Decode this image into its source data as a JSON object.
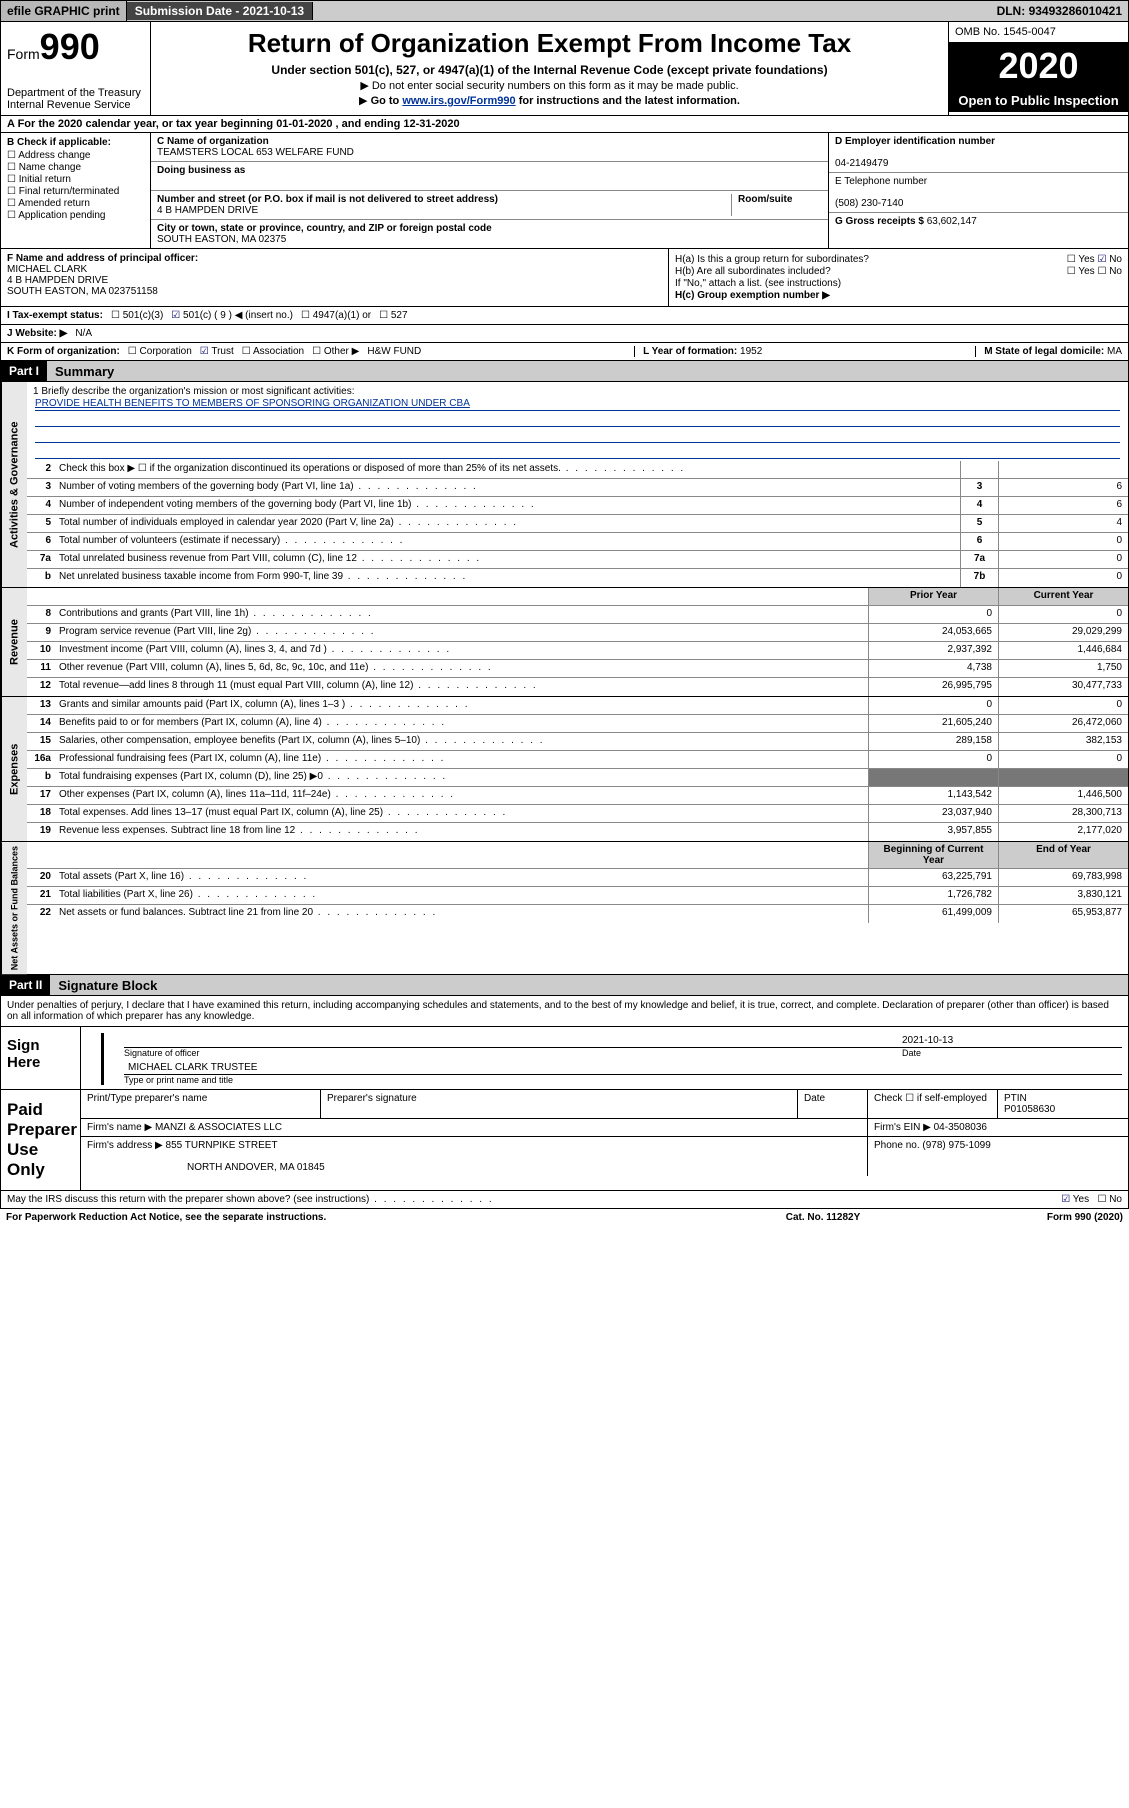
{
  "topbar": {
    "efile": "efile GRAPHIC print",
    "submission_label": "Submission Date - ",
    "submission_date": "2021-10-13",
    "dln_label": "DLN: ",
    "dln": "93493286010421"
  },
  "header": {
    "form_prefix": "Form",
    "form_no": "990",
    "dept": "Department of the Treasury\nInternal Revenue Service",
    "title": "Return of Organization Exempt From Income Tax",
    "sub1": "Under section 501(c), 527, or 4947(a)(1) of the Internal Revenue Code (except private foundations)",
    "sub2": "Do not enter social security numbers on this form as it may be made public.",
    "sub3_pre": "Go to ",
    "sub3_link": "www.irs.gov/Form990",
    "sub3_post": " for instructions and the latest information.",
    "omb": "OMB No. 1545-0047",
    "year": "2020",
    "inspect": "Open to Public Inspection"
  },
  "row_a": "A For the 2020 calendar year, or tax year beginning 01-01-2020    , and ending 12-31-2020",
  "col_b": {
    "hdr": "B Check if applicable:",
    "items": [
      "Address change",
      "Name change",
      "Initial return",
      "Final return/terminated",
      "Amended return",
      "Application pending"
    ]
  },
  "col_c": {
    "name_lbl": "C Name of organization",
    "name": "TEAMSTERS LOCAL 653 WELFARE FUND",
    "dba_lbl": "Doing business as",
    "dba": "",
    "addr_lbl": "Number and street (or P.O. box if mail is not delivered to street address)",
    "room_lbl": "Room/suite",
    "addr": "4 B HAMPDEN DRIVE",
    "city_lbl": "City or town, state or province, country, and ZIP or foreign postal code",
    "city": "SOUTH EASTON, MA  02375"
  },
  "col_d": {
    "ein_lbl": "D Employer identification number",
    "ein": "04-2149479",
    "tel_lbl": "E Telephone number",
    "tel": "(508) 230-7140",
    "gross_lbl": "G Gross receipts $ ",
    "gross": "63,602,147"
  },
  "section_f": {
    "f_lbl": "F Name and address of principal officer:",
    "f_name": "MICHAEL CLARK",
    "f_addr1": "4 B HAMPDEN DRIVE",
    "f_addr2": "SOUTH EASTON, MA  023751158",
    "ha_lbl": "H(a)  Is this a group return for subordinates?",
    "ha_yes": "Yes",
    "ha_no": "No",
    "hb_lbl": "H(b)  Are all subordinates included?",
    "hb_yes": "Yes",
    "hb_no": "No",
    "hb_note": "If \"No,\" attach a list. (see instructions)",
    "hc_lbl": "H(c)  Group exemption number ▶"
  },
  "status": {
    "i_lbl": "I  Tax-exempt status:",
    "opts": [
      "501(c)(3)",
      "501(c) ( 9 ) ◀ (insert no.)",
      "4947(a)(1) or",
      "527"
    ],
    "checked_idx": 1
  },
  "website": {
    "j_lbl": "J  Website: ▶",
    "val": "N/A"
  },
  "kform": {
    "k_lbl": "K Form of organization:",
    "opts": [
      "Corporation",
      "Trust",
      "Association",
      "Other ▶"
    ],
    "checked_idx": 1,
    "other_val": "H&W FUND",
    "l_lbl": "L Year of formation: ",
    "l_val": "1952",
    "m_lbl": "M State of legal domicile: ",
    "m_val": "MA"
  },
  "part1": {
    "label": "Part I",
    "title": "Summary"
  },
  "mission": {
    "prompt": "1  Briefly describe the organization's mission or most significant activities:",
    "text": "PROVIDE HEALTH BENEFITS TO MEMBERS OF SPONSORING ORGANIZATION UNDER CBA"
  },
  "governance": {
    "side": "Activities & Governance",
    "lines": [
      {
        "n": "2",
        "d": "Check this box ▶ ☐  if the organization discontinued its operations or disposed of more than 25% of its net assets.",
        "box": "",
        "v": ""
      },
      {
        "n": "3",
        "d": "Number of voting members of the governing body (Part VI, line 1a)",
        "box": "3",
        "v": "6"
      },
      {
        "n": "4",
        "d": "Number of independent voting members of the governing body (Part VI, line 1b)",
        "box": "4",
        "v": "6"
      },
      {
        "n": "5",
        "d": "Total number of individuals employed in calendar year 2020 (Part V, line 2a)",
        "box": "5",
        "v": "4"
      },
      {
        "n": "6",
        "d": "Total number of volunteers (estimate if necessary)",
        "box": "6",
        "v": "0"
      },
      {
        "n": "7a",
        "d": "Total unrelated business revenue from Part VIII, column (C), line 12",
        "box": "7a",
        "v": "0"
      },
      {
        "n": " b",
        "d": "Net unrelated business taxable income from Form 990-T, line 39",
        "box": "7b",
        "v": "0"
      }
    ]
  },
  "two_col_hdr": {
    "prior": "Prior Year",
    "current": "Current Year"
  },
  "revenue": {
    "side": "Revenue",
    "lines": [
      {
        "n": "8",
        "d": "Contributions and grants (Part VIII, line 1h)",
        "p": "0",
        "c": "0"
      },
      {
        "n": "9",
        "d": "Program service revenue (Part VIII, line 2g)",
        "p": "24,053,665",
        "c": "29,029,299"
      },
      {
        "n": "10",
        "d": "Investment income (Part VIII, column (A), lines 3, 4, and 7d )",
        "p": "2,937,392",
        "c": "1,446,684"
      },
      {
        "n": "11",
        "d": "Other revenue (Part VIII, column (A), lines 5, 6d, 8c, 9c, 10c, and 11e)",
        "p": "4,738",
        "c": "1,750"
      },
      {
        "n": "12",
        "d": "Total revenue—add lines 8 through 11 (must equal Part VIII, column (A), line 12)",
        "p": "26,995,795",
        "c": "30,477,733"
      }
    ]
  },
  "expenses": {
    "side": "Expenses",
    "lines": [
      {
        "n": "13",
        "d": "Grants and similar amounts paid (Part IX, column (A), lines 1–3 )",
        "p": "0",
        "c": "0"
      },
      {
        "n": "14",
        "d": "Benefits paid to or for members (Part IX, column (A), line 4)",
        "p": "21,605,240",
        "c": "26,472,060"
      },
      {
        "n": "15",
        "d": "Salaries, other compensation, employee benefits (Part IX, column (A), lines 5–10)",
        "p": "289,158",
        "c": "382,153"
      },
      {
        "n": "16a",
        "d": "Professional fundraising fees (Part IX, column (A), line 11e)",
        "p": "0",
        "c": "0"
      },
      {
        "n": "b",
        "d": "Total fundraising expenses (Part IX, column (D), line 25)  ▶0",
        "p": "SHADE",
        "c": "SHADE"
      },
      {
        "n": "17",
        "d": "Other expenses (Part IX, column (A), lines 11a–11d, 11f–24e)",
        "p": "1,143,542",
        "c": "1,446,500"
      },
      {
        "n": "18",
        "d": "Total expenses. Add lines 13–17 (must equal Part IX, column (A), line 25)",
        "p": "23,037,940",
        "c": "28,300,713"
      },
      {
        "n": "19",
        "d": "Revenue less expenses. Subtract line 18 from line 12",
        "p": "3,957,855",
        "c": "2,177,020"
      }
    ]
  },
  "netassets_hdr": {
    "begin": "Beginning of Current Year",
    "end": "End of Year"
  },
  "netassets": {
    "side": "Net Assets or Fund Balances",
    "lines": [
      {
        "n": "20",
        "d": "Total assets (Part X, line 16)",
        "p": "63,225,791",
        "c": "69,783,998"
      },
      {
        "n": "21",
        "d": "Total liabilities (Part X, line 26)",
        "p": "1,726,782",
        "c": "3,830,121"
      },
      {
        "n": "22",
        "d": "Net assets or fund balances. Subtract line 21 from line 20",
        "p": "61,499,009",
        "c": "65,953,877"
      }
    ]
  },
  "part2": {
    "label": "Part II",
    "title": "Signature Block"
  },
  "perjury": "Under penalties of perjury, I declare that I have examined this return, including accompanying schedules and statements, and to the best of my knowledge and belief, it is true, correct, and complete. Declaration of preparer (other than officer) is based on all information of which preparer has any knowledge.",
  "sign": {
    "label": "Sign Here",
    "sig_cap": "Signature of officer",
    "date_cap": "Date",
    "date": "2021-10-13",
    "name": "MICHAEL CLARK  TRUSTEE",
    "name_cap": "Type or print name and title"
  },
  "paid": {
    "label": "Paid Preparer Use Only",
    "h1": "Print/Type preparer's name",
    "h2": "Preparer's signature",
    "h3": "Date",
    "h4_chk": "Check ☐  if self-employed",
    "h5": "PTIN",
    "ptin": "P01058630",
    "firm_lbl": "Firm's name      ▶",
    "firm": "MANZI & ASSOCIATES LLC",
    "ein_lbl": "Firm's EIN ▶",
    "ein": "04-3508036",
    "addr_lbl": "Firm's address ▶",
    "addr1": "855 TURNPIKE STREET",
    "addr2": "NORTH ANDOVER, MA  01845",
    "phone_lbl": "Phone no. ",
    "phone": "(978) 975-1099"
  },
  "discuss": {
    "q": "May the IRS discuss this return with the preparer shown above? (see instructions)",
    "yes": "Yes",
    "no": "No"
  },
  "footer": {
    "pra": "For Paperwork Reduction Act Notice, see the separate instructions.",
    "cat": "Cat. No. 11282Y",
    "form": "Form 990 (2020)"
  },
  "colors": {
    "link": "#003399",
    "bar_bg": "#cccccc",
    "shade": "#777777",
    "side_bg": "#e8e8e8"
  }
}
